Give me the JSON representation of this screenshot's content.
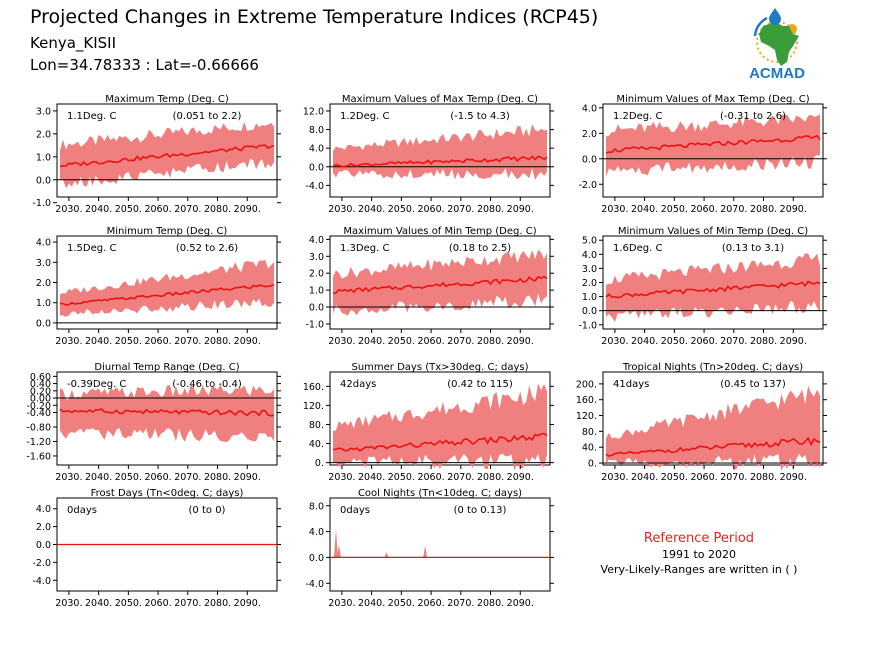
{
  "header": {
    "title": "Projected Changes in Extreme Temperature Indices (RCP45)",
    "location": "Kenya_KISII",
    "coords": "Lon=34.78333 : Lat=-0.66666",
    "logo_text": "ACMAD"
  },
  "colors": {
    "line": "#ee1111",
    "band": "#f08080",
    "logo_blue": "#1f7ac4",
    "logo_green": "#3b9c3a",
    "logo_orange": "#f2a51c",
    "reference_text": "#e8231e"
  },
  "reference": {
    "title": "Reference Period",
    "period": "1991 to 2020",
    "note": "Very-Likely-Ranges are written in ( )"
  },
  "chart_data": [
    {
      "type": "area",
      "title": "Maximum Temp (Deg. C)",
      "value_label": "1.1Deg. C",
      "range_label": "(0.051 to 2.2)",
      "x_ticks": [
        "2030.",
        "2040.",
        "2050.",
        "2060.",
        "2070.",
        "2080.",
        "2090."
      ],
      "xlim": [
        2026,
        2100
      ],
      "ylim": [
        -0.75,
        3.3
      ],
      "y_ticks": [
        "3.0",
        "2.0",
        "1.0",
        "0.0",
        "-1.0"
      ],
      "y_tick_values": [
        3.0,
        2.0,
        1.0,
        0.0,
        -1.0
      ],
      "trend": [
        [
          2026,
          0.6
        ],
        [
          2100,
          1.5
        ]
      ],
      "band_lower": [
        [
          2026,
          -0.1
        ],
        [
          2100,
          0.9
        ]
      ],
      "band_upper": [
        [
          2026,
          1.4
        ],
        [
          2100,
          2.4
        ]
      ]
    },
    {
      "type": "area",
      "title": "Maximum Values of Max Temp (Deg. C)",
      "value_label": "1.2Deg. C",
      "range_label": "(-1.5 to 4.3)",
      "x_ticks": [
        "2030.",
        "2040.",
        "2050.",
        "2060.",
        "2070.",
        "2080.",
        "2090."
      ],
      "xlim": [
        2026,
        2100
      ],
      "ylim": [
        -6.5,
        13.5
      ],
      "y_ticks": [
        "12.0",
        "8.0",
        "4.0",
        "0.0",
        "-4.0"
      ],
      "y_tick_values": [
        12.0,
        8.0,
        4.0,
        0.0,
        -4.0
      ],
      "trend": [
        [
          2026,
          0.2
        ],
        [
          2100,
          2.0
        ]
      ],
      "band_lower": [
        [
          2026,
          -1.2
        ],
        [
          2100,
          -1.0
        ]
      ],
      "band_upper": [
        [
          2026,
          3.5
        ],
        [
          2100,
          7.5
        ]
      ]
    },
    {
      "type": "area",
      "title": "Minimum Values of Max Temp (Deg. C)",
      "value_label": "1.2Deg. C",
      "range_label": "(-0.31 to 2.6)",
      "x_ticks": [
        "2030.",
        "2040.",
        "2050.",
        "2060.",
        "2070.",
        "2080.",
        "2090."
      ],
      "xlim": [
        2026,
        2100
      ],
      "ylim": [
        -3.0,
        4.3
      ],
      "y_ticks": [
        "4.0",
        "2.0",
        "0.0",
        "-2.0"
      ],
      "y_tick_values": [
        4.0,
        2.0,
        0.0,
        -2.0
      ],
      "trend": [
        [
          2026,
          0.6
        ],
        [
          2100,
          1.7
        ]
      ],
      "band_lower": [
        [
          2026,
          -0.8
        ],
        [
          2100,
          0.0
        ]
      ],
      "band_upper": [
        [
          2026,
          2.0
        ],
        [
          2100,
          3.0
        ]
      ]
    },
    {
      "type": "area",
      "title": "Minimum Temp (Deg. C)",
      "value_label": "1.5Deg. C",
      "range_label": "(0.52 to 2.6)",
      "x_ticks": [
        "2030.",
        "2040.",
        "2050.",
        "2060.",
        "2070.",
        "2080.",
        "2090."
      ],
      "xlim": [
        2026,
        2100
      ],
      "ylim": [
        -0.3,
        4.3
      ],
      "y_ticks": [
        "4.0",
        "3.0",
        "2.0",
        "1.0",
        "0.0"
      ],
      "y_tick_values": [
        4.0,
        3.0,
        2.0,
        1.0,
        0.0
      ],
      "trend": [
        [
          2026,
          0.9
        ],
        [
          2100,
          1.9
        ]
      ],
      "band_lower": [
        [
          2026,
          0.5
        ],
        [
          2100,
          1.2
        ]
      ],
      "band_upper": [
        [
          2026,
          1.4
        ],
        [
          2100,
          2.9
        ]
      ]
    },
    {
      "type": "area",
      "title": "Maximum Values of Min Temp (Deg. C)",
      "value_label": "1.3Deg. C",
      "range_label": "(0.18 to 2.5)",
      "x_ticks": [
        "2030.",
        "2040.",
        "2050.",
        "2060.",
        "2070.",
        "2080.",
        "2090."
      ],
      "xlim": [
        2026,
        2100
      ],
      "ylim": [
        -1.3,
        4.2
      ],
      "y_ticks": [
        "4.0",
        "3.0",
        "2.0",
        "1.0",
        "0.0",
        "-1.0"
      ],
      "y_tick_values": [
        4.0,
        3.0,
        2.0,
        1.0,
        0.0,
        -1.0
      ],
      "trend": [
        [
          2026,
          0.9
        ],
        [
          2100,
          1.7
        ]
      ],
      "band_lower": [
        [
          2026,
          -0.1
        ],
        [
          2100,
          0.6
        ]
      ],
      "band_upper": [
        [
          2026,
          1.8
        ],
        [
          2100,
          3.0
        ]
      ]
    },
    {
      "type": "area",
      "title": "Minimum Values of Min Temp (Deg. C)",
      "value_label": "1.6Deg. C",
      "range_label": "(0.13 to 3.1)",
      "x_ticks": [
        "2030.",
        "2040.",
        "2050.",
        "2060.",
        "2070.",
        "2080.",
        "2090."
      ],
      "xlim": [
        2026,
        2100
      ],
      "ylim": [
        -1.3,
        5.3
      ],
      "y_ticks": [
        "5.0",
        "4.0",
        "3.0",
        "2.0",
        "1.0",
        "0.0",
        "-1.0"
      ],
      "y_tick_values": [
        5.0,
        4.0,
        3.0,
        2.0,
        1.0,
        0.0,
        -1.0
      ],
      "trend": [
        [
          2026,
          1.0
        ],
        [
          2100,
          2.0
        ]
      ],
      "band_lower": [
        [
          2026,
          -0.3
        ],
        [
          2100,
          0.6
        ]
      ],
      "band_upper": [
        [
          2026,
          2.0
        ],
        [
          2100,
          3.5
        ]
      ]
    },
    {
      "type": "area",
      "title": "Diurnal Temp Range (Deg. C)",
      "value_label": "-0.39Deg. C",
      "range_label": "(-0.46 to -0.4)",
      "x_ticks": [
        "2030.",
        "2040.",
        "2050.",
        "2060.",
        "2070.",
        "2080.",
        "2090."
      ],
      "xlim": [
        2026,
        2100
      ],
      "ylim": [
        -1.85,
        0.72
      ],
      "y_ticks": [
        "0.60",
        "0.40",
        "0.20",
        "0.00",
        "-0.20",
        "-0.40",
        "-0.80",
        "-1.20",
        "-1.60"
      ],
      "y_tick_values": [
        0.6,
        0.4,
        0.2,
        0.0,
        -0.2,
        -0.4,
        -0.8,
        -1.2,
        -1.6
      ],
      "trend": [
        [
          2026,
          -0.35
        ],
        [
          2100,
          -0.42
        ]
      ],
      "band_lower": [
        [
          2026,
          -0.9
        ],
        [
          2100,
          -1.0
        ]
      ],
      "band_upper": [
        [
          2026,
          0.05
        ],
        [
          2100,
          0.15
        ]
      ]
    },
    {
      "type": "area",
      "title": "Summer Days (Tx>30deg. C; days)",
      "value_label": "42days",
      "range_label": "(0.42 to 115)",
      "x_ticks": [
        "2030.",
        "2040.",
        "2050.",
        "2060.",
        "2070.",
        "2080.",
        "2090."
      ],
      "xlim": [
        2026,
        2100
      ],
      "ylim": [
        -5,
        190
      ],
      "y_ticks": [
        "160.",
        "120.",
        "80.",
        "40.",
        "0."
      ],
      "y_tick_values": [
        160,
        120,
        80,
        40,
        0
      ],
      "trend": [
        [
          2026,
          25
        ],
        [
          2100,
          55
        ]
      ],
      "band_lower": [
        [
          2026,
          5
        ],
        [
          2100,
          10
        ]
      ],
      "band_upper": [
        [
          2026,
          70
        ],
        [
          2100,
          140
        ]
      ]
    },
    {
      "type": "area",
      "title": "Tropical Nights (Tn>20deg. C; days)",
      "value_label": "41days",
      "range_label": "(0.45 to 137)",
      "x_ticks": [
        "2030.",
        "2040.",
        "2050.",
        "2060.",
        "2070.",
        "2080.",
        "2090."
      ],
      "xlim": [
        2026,
        2100
      ],
      "ylim": [
        -5,
        230
      ],
      "y_ticks": [
        "200.",
        "160.",
        "120.",
        "80.",
        "40.",
        "0."
      ],
      "y_tick_values": [
        200,
        160,
        120,
        80,
        40,
        0
      ],
      "trend": [
        [
          2026,
          20
        ],
        [
          2100,
          58
        ]
      ],
      "band_lower": [
        [
          2026,
          5
        ],
        [
          2100,
          12
        ]
      ],
      "band_upper": [
        [
          2026,
          60
        ],
        [
          2100,
          170
        ]
      ]
    },
    {
      "type": "area",
      "title": "Frost Days (Tn<0deg. C; days)",
      "value_label": "0days",
      "range_label": "(0 to 0)",
      "x_ticks": [
        "2030.",
        "2040.",
        "2050.",
        "2060.",
        "2070.",
        "2080.",
        "2090."
      ],
      "xlim": [
        2026,
        2100
      ],
      "ylim": [
        -5.2,
        5.2
      ],
      "y_ticks": [
        "4.0",
        "2.0",
        "0.0",
        "-2.0",
        "-4.0"
      ],
      "y_tick_values": [
        4.0,
        2.0,
        0.0,
        -2.0,
        -4.0
      ],
      "trend": [
        [
          2026,
          0
        ],
        [
          2100,
          0
        ]
      ],
      "band_lower": [
        [
          2026,
          0
        ],
        [
          2100,
          0
        ]
      ],
      "band_upper": [
        [
          2026,
          0
        ],
        [
          2100,
          0
        ]
      ]
    },
    {
      "type": "area",
      "title": "Cool Nights (Tn<10deg. C; days)",
      "value_label": "0days",
      "range_label": "(0 to 0.13)",
      "x_ticks": [
        "2030.",
        "2040.",
        "2050.",
        "2060.",
        "2070.",
        "2080.",
        "2090."
      ],
      "xlim": [
        2026,
        2100
      ],
      "ylim": [
        -5.2,
        9.2
      ],
      "y_ticks": [
        "8.0",
        "4.0",
        "0.0",
        "-4.0"
      ],
      "y_tick_values": [
        8.0,
        4.0,
        0.0,
        -4.0
      ],
      "trend": [
        [
          2026,
          0
        ],
        [
          2100,
          0
        ]
      ],
      "band_lower": [
        [
          2026,
          0
        ],
        [
          2100,
          0
        ]
      ],
      "band_upper": [
        [
          2026,
          0
        ],
        [
          2100,
          0
        ]
      ],
      "spikes": [
        [
          2028,
          4.5
        ],
        [
          2029,
          2.0
        ],
        [
          2045,
          0.8
        ],
        [
          2058,
          1.8
        ]
      ]
    }
  ]
}
